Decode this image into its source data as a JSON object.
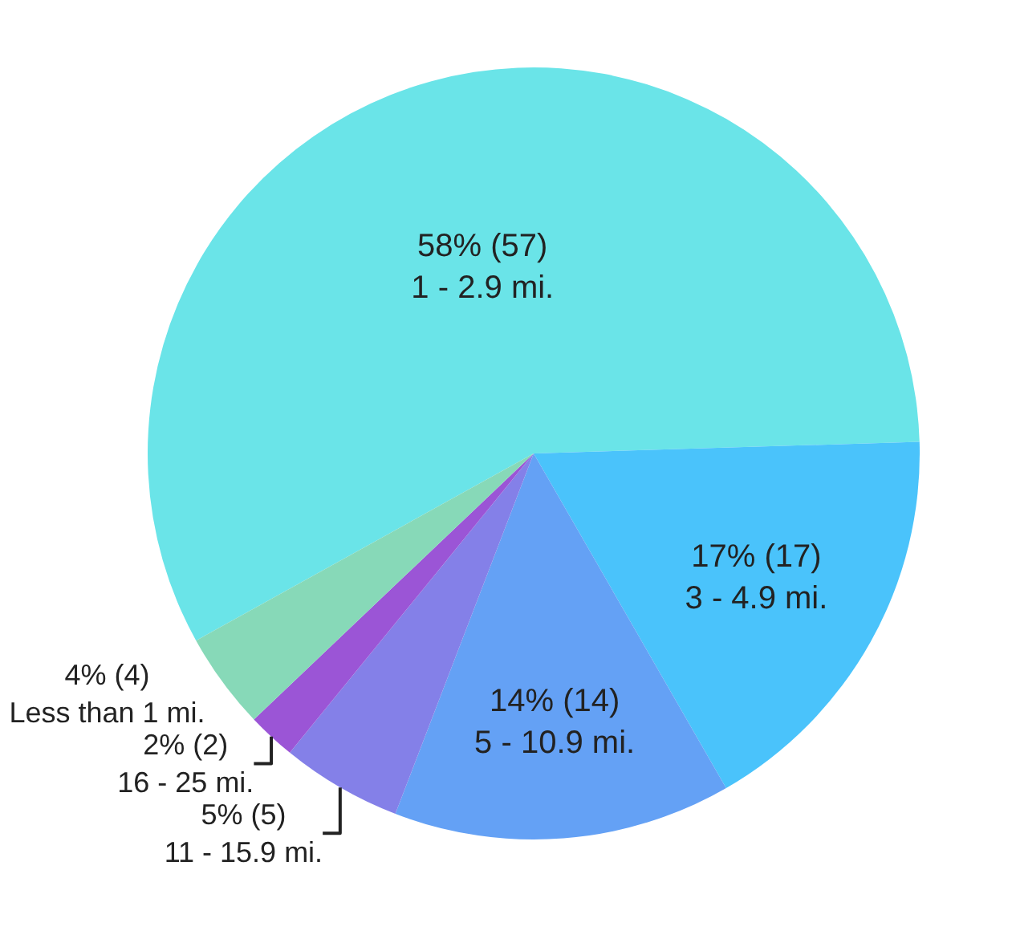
{
  "chart_data": {
    "type": "pie",
    "categories": [
      "1 - 2.9 mi.",
      "3 - 4.9 mi.",
      "5 - 10.9 mi.",
      "11 - 15.9 mi.",
      "16 - 25 mi.",
      "Less than 1 mi."
    ],
    "values": [
      57,
      17,
      14,
      5,
      2,
      4
    ],
    "value_labels": [
      "58% (57)",
      "17% (17)",
      "14% (14)",
      "5% (5)",
      "2% (2)",
      "4% (4)"
    ],
    "colors": [
      "#6ae4e8",
      "#4ac3fb",
      "#64a1f5",
      "#8480e8",
      "#9b55d6",
      "#87d9b8"
    ],
    "legend": false
  }
}
